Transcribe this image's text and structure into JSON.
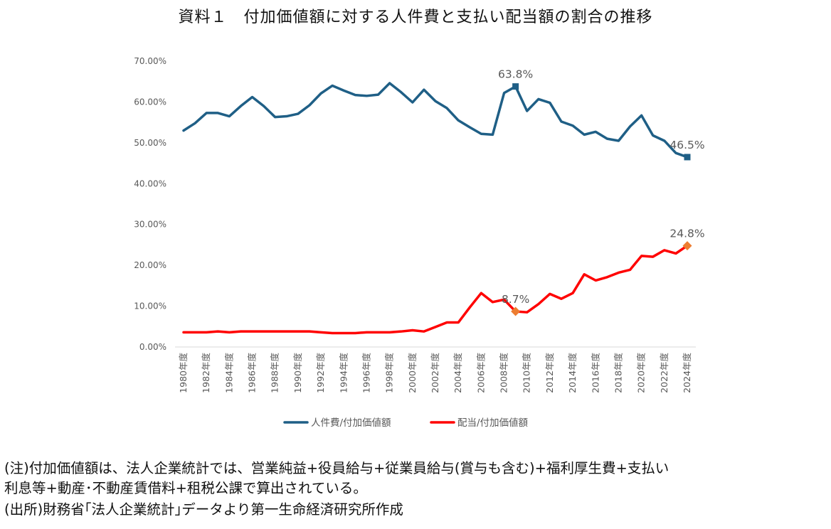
{
  "title": "資料１　付加価値額に対する人件費と支払い配当額の割合の推移",
  "chart_data": {
    "type": "line",
    "title": "資料１　付加価値額に対する人件費と支払い配当額の割合の推移",
    "categories": [
      "1980年度",
      "1981年度",
      "1982年度",
      "1983年度",
      "1984年度",
      "1985年度",
      "1986年度",
      "1987年度",
      "1988年度",
      "1989年度",
      "1990年度",
      "1991年度",
      "1992年度",
      "1993年度",
      "1994年度",
      "1995年度",
      "1996年度",
      "1997年度",
      "1998年度",
      "1999年度",
      "2000年度",
      "2001年度",
      "2002年度",
      "2003年度",
      "2004年度",
      "2005年度",
      "2006年度",
      "2007年度",
      "2008年度",
      "2009年度",
      "2010年度",
      "2011年度",
      "2012年度",
      "2013年度",
      "2014年度",
      "2015年度",
      "2016年度",
      "2017年度",
      "2018年度",
      "2019年度",
      "2020年度",
      "2021年度",
      "2022年度",
      "2023年度",
      "2024年度"
    ],
    "tick_labels": [
      "1980年度",
      "1982年度",
      "1984年度",
      "1986年度",
      "1988年度",
      "1990年度",
      "1992年度",
      "1994年度",
      "1996年度",
      "1998年度",
      "2000年度",
      "2002年度",
      "2004年度",
      "2006年度",
      "2008年度",
      "2010年度",
      "2012年度",
      "2014年度",
      "2016年度",
      "2018年度",
      "2020年度",
      "2022年度",
      "2024年度"
    ],
    "y_ticks": [
      "0.00%",
      "10.00%",
      "20.00%",
      "30.00%",
      "40.00%",
      "50.00%",
      "60.00%",
      "70.00%"
    ],
    "ylim": [
      0,
      70
    ],
    "legend_position": "bottom",
    "series": [
      {
        "name": "人件費/付加価値額",
        "color": "#1F5F86",
        "values": [
          53.0,
          54.8,
          57.3,
          57.3,
          56.5,
          59.0,
          61.2,
          59.0,
          56.3,
          56.5,
          57.1,
          59.2,
          62.1,
          64.0,
          62.8,
          61.7,
          61.5,
          61.8,
          64.6,
          62.4,
          59.9,
          63.0,
          60.2,
          58.5,
          55.5,
          53.8,
          52.2,
          52.0,
          62.2,
          63.8,
          57.8,
          60.7,
          59.8,
          55.2,
          54.2,
          52.0,
          52.7,
          51.0,
          50.5,
          54.0,
          56.7,
          51.8,
          50.5,
          47.5,
          46.5
        ],
        "annotations": [
          {
            "index": 29,
            "label": "63.8%"
          },
          {
            "index": 44,
            "label": "46.5%"
          }
        ]
      },
      {
        "name": "配当/付加価値額",
        "color": "#FF0000",
        "marker_color": "#ED7D31",
        "values": [
          3.6,
          3.6,
          3.6,
          3.8,
          3.6,
          3.8,
          3.8,
          3.8,
          3.8,
          3.8,
          3.8,
          3.8,
          3.6,
          3.4,
          3.4,
          3.4,
          3.6,
          3.6,
          3.6,
          3.8,
          4.1,
          3.8,
          4.9,
          6.0,
          6.0,
          9.7,
          13.2,
          11.0,
          11.6,
          8.7,
          8.5,
          10.5,
          13.0,
          11.8,
          13.2,
          17.8,
          16.3,
          17.1,
          18.2,
          18.9,
          22.3,
          22.1,
          23.7,
          22.9,
          24.8
        ],
        "annotations": [
          {
            "index": 29,
            "label": "8.7%"
          },
          {
            "index": 44,
            "label": "24.8%"
          }
        ]
      }
    ]
  },
  "notes": {
    "note_line1": "(注)付加価値額は、法人企業統計では、営業純益+役員給与+従業員給与(賞与も含む)+福利厚生費+支払い",
    "note_line2": "利息等+動産･不動産賃借料+租税公課で算出されている。",
    "source": "(出所)財務省｢法人企業統計｣データより第一生命経済研究所作成"
  }
}
